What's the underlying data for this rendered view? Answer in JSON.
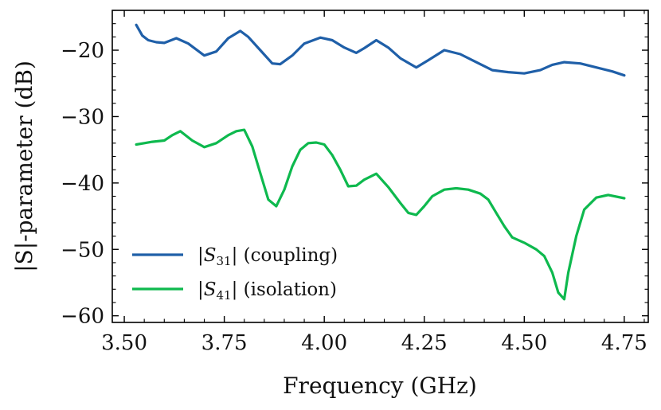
{
  "chart_data": {
    "type": "line",
    "title": "",
    "xlabel": "Frequency (GHz)",
    "ylabel": "|S|-parameter (dB)",
    "xlim": [
      3.47,
      4.81
    ],
    "ylim": [
      -61.0,
      -14.0
    ],
    "xticks": [
      3.5,
      3.75,
      4.0,
      4.25,
      4.5,
      4.75
    ],
    "xtick_labels": [
      "3.50",
      "3.75",
      "4.00",
      "4.25",
      "4.50",
      "4.75"
    ],
    "yticks": [
      -60,
      -50,
      -40,
      -30,
      -20
    ],
    "ytick_labels": [
      "−60",
      "−50",
      "−40",
      "−30",
      "−20"
    ],
    "legend_position": "lower-left",
    "series": [
      {
        "name": "|S31| (coupling)",
        "label_main": "|S",
        "label_sub": "31",
        "label_rest": "| (coupling)",
        "color": "#1f5fa8",
        "x": [
          3.53,
          3.545,
          3.56,
          3.58,
          3.6,
          3.63,
          3.66,
          3.7,
          3.73,
          3.76,
          3.79,
          3.81,
          3.84,
          3.87,
          3.89,
          3.92,
          3.95,
          3.99,
          4.02,
          4.05,
          4.08,
          4.1,
          4.13,
          4.16,
          4.19,
          4.23,
          4.26,
          4.3,
          4.34,
          4.38,
          4.42,
          4.46,
          4.5,
          4.54,
          4.57,
          4.6,
          4.64,
          4.68,
          4.72,
          4.75
        ],
        "y": [
          -16.2,
          -17.8,
          -18.5,
          -18.8,
          -18.9,
          -18.2,
          -19.0,
          -20.8,
          -20.2,
          -18.2,
          -17.1,
          -18.0,
          -20.0,
          -22.0,
          -22.1,
          -20.8,
          -19.0,
          -18.1,
          -18.5,
          -19.6,
          -20.4,
          -19.7,
          -18.5,
          -19.6,
          -21.2,
          -22.6,
          -21.5,
          -20.0,
          -20.6,
          -21.8,
          -23.0,
          -23.3,
          -23.5,
          -23.0,
          -22.2,
          -21.8,
          -22.0,
          -22.6,
          -23.2,
          -23.8
        ]
      },
      {
        "name": "|S41| (isolation)",
        "label_main": "|S",
        "label_sub": "41",
        "label_rest": "| (isolation)",
        "color": "#0eb94e",
        "x": [
          3.53,
          3.55,
          3.57,
          3.6,
          3.62,
          3.64,
          3.67,
          3.7,
          3.73,
          3.76,
          3.78,
          3.8,
          3.82,
          3.84,
          3.86,
          3.88,
          3.9,
          3.92,
          3.94,
          3.96,
          3.98,
          4.0,
          4.02,
          4.04,
          4.06,
          4.08,
          4.1,
          4.13,
          4.16,
          4.19,
          4.21,
          4.23,
          4.25,
          4.27,
          4.3,
          4.33,
          4.36,
          4.39,
          4.41,
          4.43,
          4.45,
          4.47,
          4.5,
          4.53,
          4.55,
          4.57,
          4.585,
          4.6,
          4.61,
          4.63,
          4.65,
          4.68,
          4.71,
          4.75
        ],
        "y": [
          -34.2,
          -34.0,
          -33.8,
          -33.6,
          -32.8,
          -32.2,
          -33.6,
          -34.6,
          -34.0,
          -32.8,
          -32.2,
          -32.0,
          -34.5,
          -38.5,
          -42.5,
          -43.5,
          -41.0,
          -37.5,
          -35.0,
          -34.0,
          -33.9,
          -34.2,
          -35.8,
          -38.0,
          -40.5,
          -40.4,
          -39.5,
          -38.6,
          -40.6,
          -43.0,
          -44.5,
          -44.8,
          -43.5,
          -42.0,
          -41.0,
          -40.8,
          -41.0,
          -41.6,
          -42.5,
          -44.5,
          -46.5,
          -48.2,
          -49.0,
          -50.0,
          -51.0,
          -53.5,
          -56.5,
          -57.5,
          -53.5,
          -48.0,
          -44.0,
          -42.2,
          -41.8,
          -42.3
        ]
      }
    ]
  }
}
